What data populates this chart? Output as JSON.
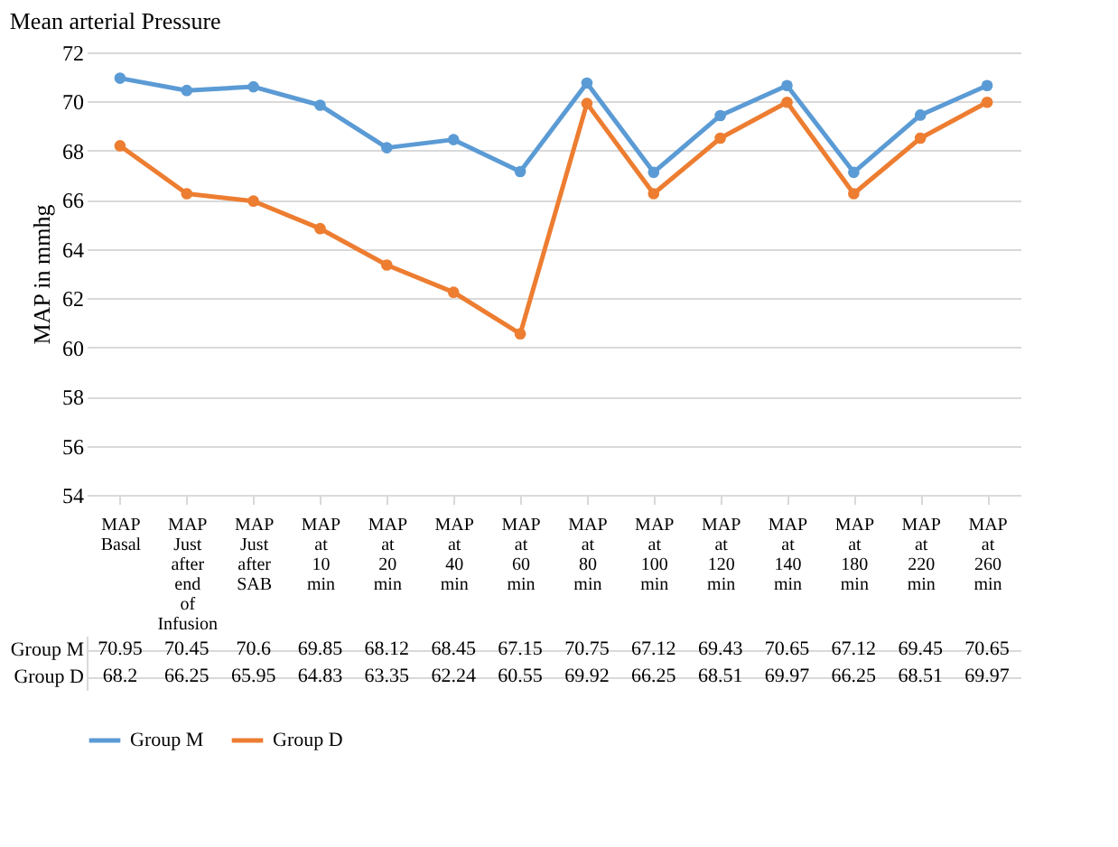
{
  "chart_data": {
    "type": "line",
    "title": "Mean arterial Pressure",
    "ylabel": "MAP in mmhg",
    "categories": [
      "MAP Basal",
      "MAP Just after end of Infusion",
      "MAP Just after SAB",
      "MAP at 10 min",
      "MAP at 20 min",
      "MAP at 40 min",
      "MAP at 60 min",
      "MAP at 80 min",
      "MAP at 100 min",
      "MAP at 120 min",
      "MAP at 140 min",
      "MAP at 180 min",
      "MAP at 220 min",
      "MAP at 260 min"
    ],
    "series": [
      {
        "name": "Group M",
        "color": "#5b9bd5",
        "values": [
          70.95,
          70.45,
          70.6,
          69.85,
          68.12,
          68.45,
          67.15,
          70.75,
          67.12,
          69.43,
          70.65,
          67.12,
          69.45,
          70.65
        ]
      },
      {
        "name": "Group D",
        "color": "#ed7d31",
        "values": [
          68.2,
          66.25,
          65.95,
          64.83,
          63.35,
          62.24,
          60.55,
          69.92,
          66.25,
          68.51,
          69.97,
          66.25,
          68.51,
          69.97
        ]
      }
    ],
    "ylim": [
      54,
      72
    ],
    "yticks": [
      54,
      56,
      58,
      60,
      62,
      64,
      66,
      68,
      70,
      72
    ],
    "grid": "y",
    "legend": "bottom",
    "marker": "circle",
    "line_style": "solid",
    "data_labels": true
  }
}
